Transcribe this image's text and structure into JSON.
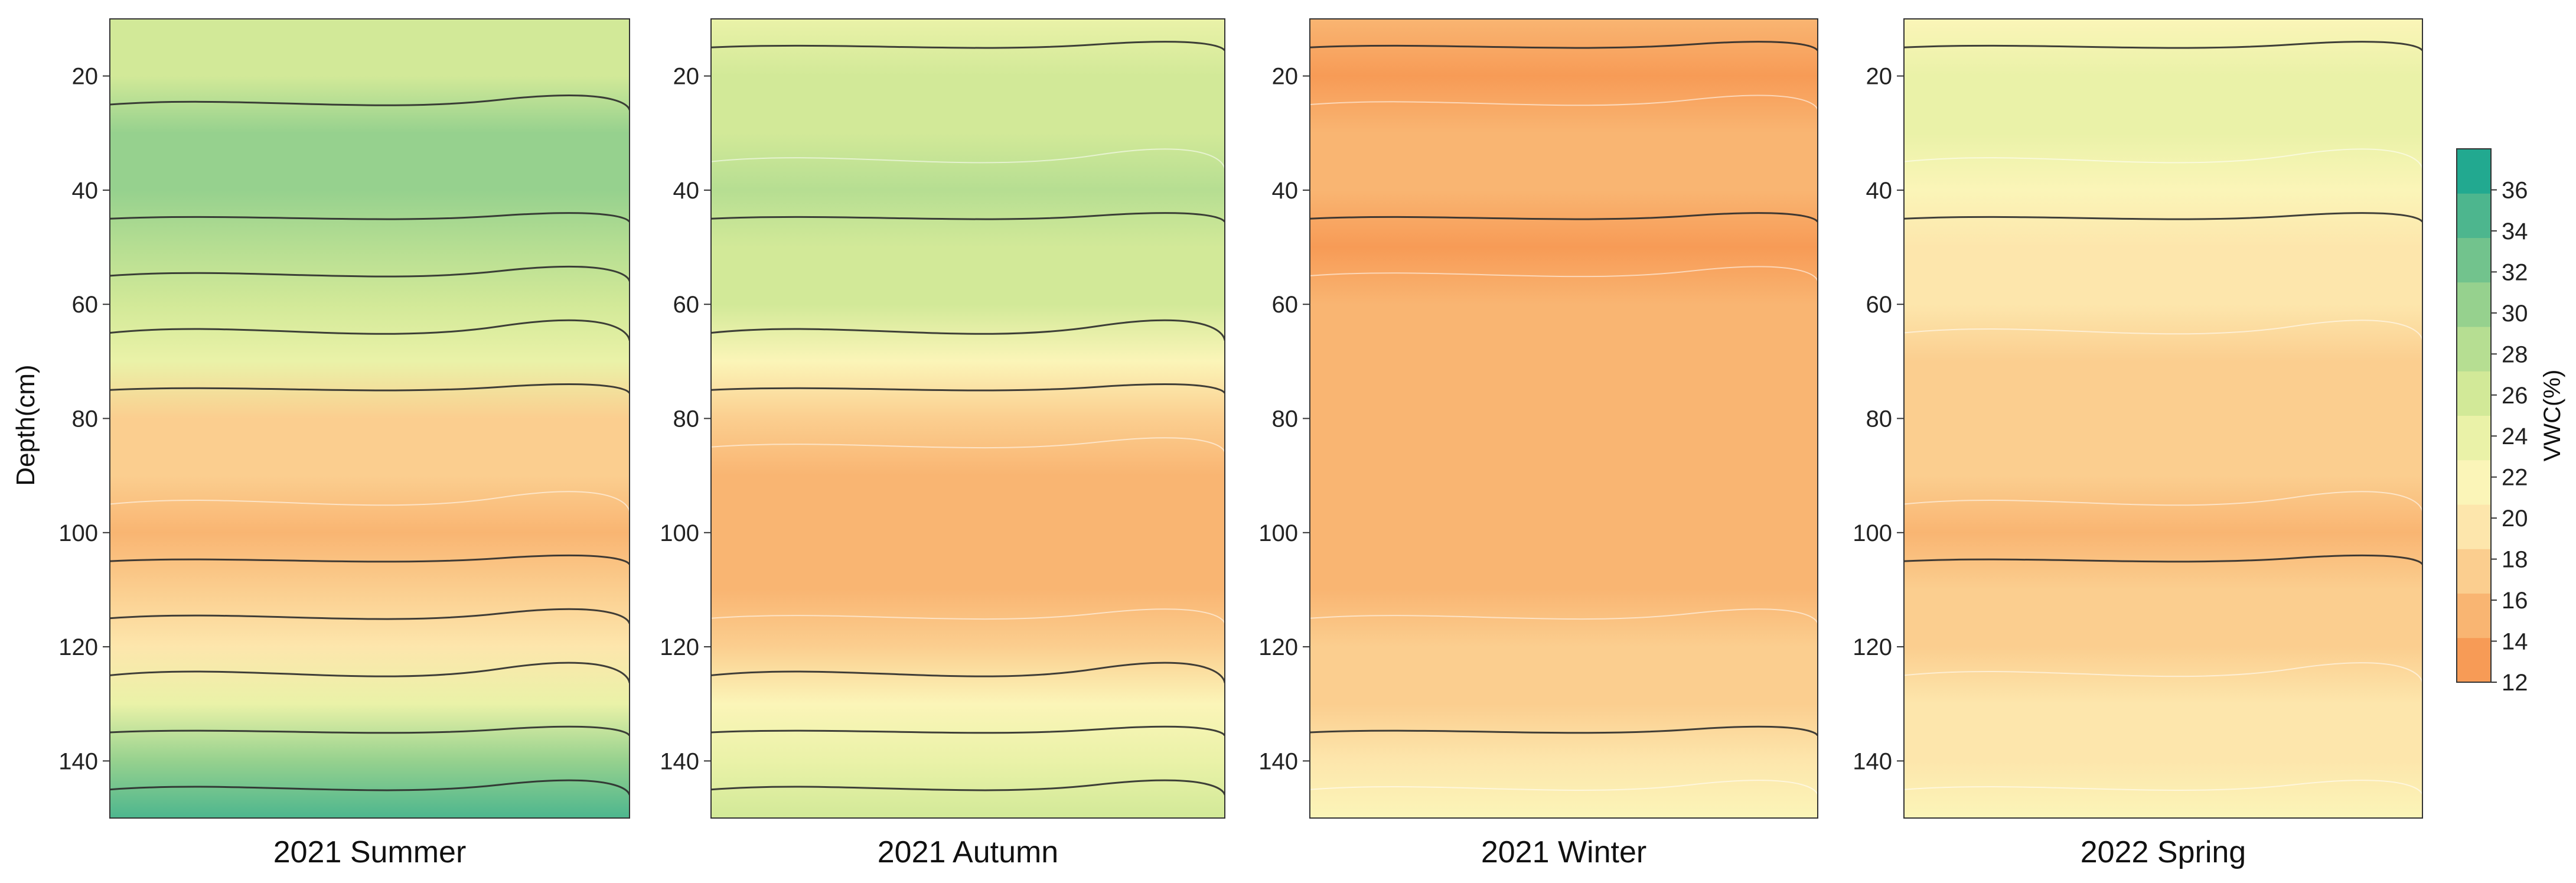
{
  "chart_data": {
    "type": "heatmap",
    "subtype": "filled-contour",
    "ylabel": "Depth(cm)",
    "y_axis": {
      "range": [
        10,
        150
      ],
      "inverted": true,
      "ticks": [
        20,
        40,
        60,
        80,
        100,
        120,
        140
      ],
      "tick_labels": [
        "20",
        "40",
        "60",
        "80",
        "100",
        "120",
        "140"
      ]
    },
    "colorbar": {
      "label": "VWC(%)",
      "range": [
        12,
        38
      ],
      "ticks": [
        12,
        14,
        16,
        18,
        20,
        22,
        24,
        26,
        28,
        30,
        32,
        34,
        36
      ],
      "tick_labels": [
        "12",
        "14",
        "16",
        "18",
        "20",
        "22",
        "24",
        "26",
        "28",
        "30",
        "32",
        "34",
        "36"
      ],
      "colors": [
        "#F79B56",
        "#F9B572",
        "#FBCE8F",
        "#FDE6AC",
        "#FBF5B8",
        "#EAF2A8",
        "#D2E998",
        "#B6DE92",
        "#96D18E",
        "#72C38D",
        "#4DB68E",
        "#22A990"
      ]
    },
    "panels": [
      {
        "title": "2021 Summer",
        "profile": [
          {
            "depth": 10,
            "vwc": 25
          },
          {
            "depth": 20,
            "vwc": 27
          },
          {
            "depth": 30,
            "vwc": 30
          },
          {
            "depth": 40,
            "vwc": 31
          },
          {
            "depth": 50,
            "vwc": 29
          },
          {
            "depth": 60,
            "vwc": 26
          },
          {
            "depth": 70,
            "vwc": 23
          },
          {
            "depth": 80,
            "vwc": 18
          },
          {
            "depth": 90,
            "vwc": 17
          },
          {
            "depth": 100,
            "vwc": 16
          },
          {
            "depth": 110,
            "vwc": 17
          },
          {
            "depth": 120,
            "vwc": 20
          },
          {
            "depth": 130,
            "vwc": 24
          },
          {
            "depth": 140,
            "vwc": 30
          },
          {
            "depth": 150,
            "vwc": 34
          }
        ]
      },
      {
        "title": "2021 Autumn",
        "profile": [
          {
            "depth": 10,
            "vwc": 24
          },
          {
            "depth": 20,
            "vwc": 25
          },
          {
            "depth": 30,
            "vwc": 27
          },
          {
            "depth": 40,
            "vwc": 28
          },
          {
            "depth": 50,
            "vwc": 27
          },
          {
            "depth": 60,
            "vwc": 25
          },
          {
            "depth": 70,
            "vwc": 22
          },
          {
            "depth": 80,
            "vwc": 18
          },
          {
            "depth": 90,
            "vwc": 16
          },
          {
            "depth": 100,
            "vwc": 15
          },
          {
            "depth": 110,
            "vwc": 16
          },
          {
            "depth": 120,
            "vwc": 18
          },
          {
            "depth": 130,
            "vwc": 21
          },
          {
            "depth": 140,
            "vwc": 24
          },
          {
            "depth": 150,
            "vwc": 27
          }
        ]
      },
      {
        "title": "2021 Winter",
        "profile": [
          {
            "depth": 10,
            "vwc": 16
          },
          {
            "depth": 20,
            "vwc": 14
          },
          {
            "depth": 30,
            "vwc": 15
          },
          {
            "depth": 40,
            "vwc": 15
          },
          {
            "depth": 50,
            "vwc": 14
          },
          {
            "depth": 60,
            "vwc": 15
          },
          {
            "depth": 70,
            "vwc": 15
          },
          {
            "depth": 80,
            "vwc": 15
          },
          {
            "depth": 90,
            "vwc": 15
          },
          {
            "depth": 100,
            "vwc": 15
          },
          {
            "depth": 110,
            "vwc": 16
          },
          {
            "depth": 120,
            "vwc": 17
          },
          {
            "depth": 130,
            "vwc": 18
          },
          {
            "depth": 140,
            "vwc": 19
          },
          {
            "depth": 150,
            "vwc": 21
          }
        ]
      },
      {
        "title": "2022 Spring",
        "profile": [
          {
            "depth": 10,
            "vwc": 22
          },
          {
            "depth": 20,
            "vwc": 23
          },
          {
            "depth": 30,
            "vwc": 23
          },
          {
            "depth": 40,
            "vwc": 22
          },
          {
            "depth": 50,
            "vwc": 20
          },
          {
            "depth": 60,
            "vwc": 19
          },
          {
            "depth": 70,
            "vwc": 18
          },
          {
            "depth": 80,
            "vwc": 18
          },
          {
            "depth": 90,
            "vwc": 17
          },
          {
            "depth": 100,
            "vwc": 16
          },
          {
            "depth": 110,
            "vwc": 17
          },
          {
            "depth": 120,
            "vwc": 18
          },
          {
            "depth": 130,
            "vwc": 19
          },
          {
            "depth": 140,
            "vwc": 20
          },
          {
            "depth": 150,
            "vwc": 21
          }
        ]
      }
    ]
  }
}
